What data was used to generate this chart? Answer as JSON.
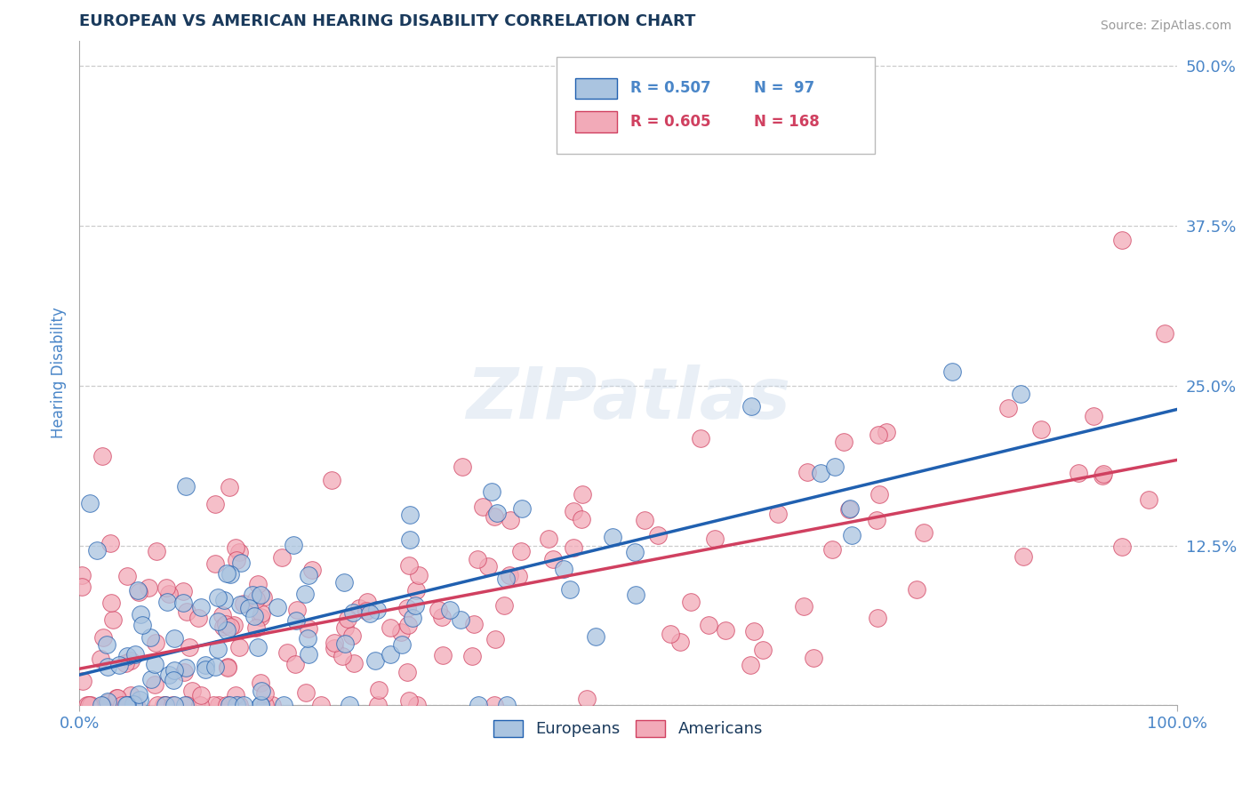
{
  "title": "EUROPEAN VS AMERICAN HEARING DISABILITY CORRELATION CHART",
  "source_text": "Source: ZipAtlas.com",
  "watermark": "ZIPatlas",
  "ylabel": "Hearing Disability",
  "xlim": [
    0,
    100
  ],
  "ylim": [
    0,
    52
  ],
  "yticks": [
    0,
    12.5,
    25.0,
    37.5,
    50.0
  ],
  "xticks": [
    0,
    100
  ],
  "xticklabels": [
    "0.0%",
    "100.0%"
  ],
  "yticklabels": [
    "",
    "12.5%",
    "25.0%",
    "37.5%",
    "50.0%"
  ],
  "european_color": "#aac4e0",
  "american_color": "#f2aab8",
  "european_line_color": "#2060b0",
  "american_line_color": "#d04060",
  "legend_R_european": "0.507",
  "legend_N_european": "97",
  "legend_R_american": "0.605",
  "legend_N_american": "168",
  "european_label": "Europeans",
  "american_label": "Americans",
  "background_color": "#ffffff",
  "grid_color": "#cccccc",
  "title_color": "#1a3a5c",
  "axis_label_color": "#4a86c8",
  "seed": 42,
  "n_european": 97,
  "n_american": 168
}
